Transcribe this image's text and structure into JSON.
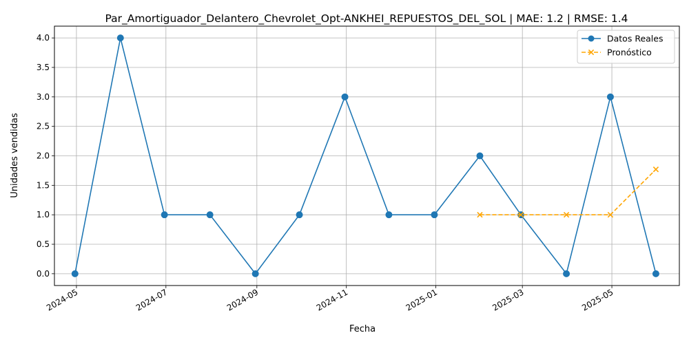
{
  "chart_data": {
    "type": "line",
    "title": "Par_Amortiguador_Delantero_Chevrolet_Opt-ANKHEI_REPUESTOS_DEL_SOL | MAE: 1.2 | RMSE: 1.4",
    "xlabel": "Fecha",
    "ylabel": "Unidades vendidas",
    "x_ticks": [
      "2024-05",
      "2024-07",
      "2024-09",
      "2024-11",
      "2025-01",
      "2025-03",
      "2025-05"
    ],
    "y_ticks": [
      "0.0",
      "0.5",
      "1.0",
      "1.5",
      "2.0",
      "2.5",
      "3.0",
      "3.5",
      "4.0"
    ],
    "ylim": [
      -0.2,
      4.2
    ],
    "xlim": [
      "2024-04-16",
      "2025-06-16"
    ],
    "grid": true,
    "legend_position": "top-right",
    "series": [
      {
        "name": "Datos Reales",
        "color": "#1f77b4",
        "marker": "circle",
        "linestyle": "solid",
        "x": [
          "2024-04-30",
          "2024-05-31",
          "2024-06-30",
          "2024-07-31",
          "2024-08-31",
          "2024-09-30",
          "2024-10-31",
          "2024-11-30",
          "2024-12-31",
          "2025-01-31",
          "2025-02-28",
          "2025-03-31",
          "2025-04-30",
          "2025-05-31"
        ],
        "values": [
          0,
          4,
          1,
          1,
          0,
          1,
          3,
          1,
          1,
          2,
          1,
          0,
          3,
          0
        ]
      },
      {
        "name": "Pronóstico",
        "color": "#ffa500",
        "marker": "x",
        "linestyle": "dashed",
        "x": [
          "2025-01-31",
          "2025-02-28",
          "2025-03-31",
          "2025-04-30",
          "2025-05-31"
        ],
        "values": [
          1.0,
          1.0,
          1.0,
          1.0,
          1.77
        ]
      }
    ]
  }
}
